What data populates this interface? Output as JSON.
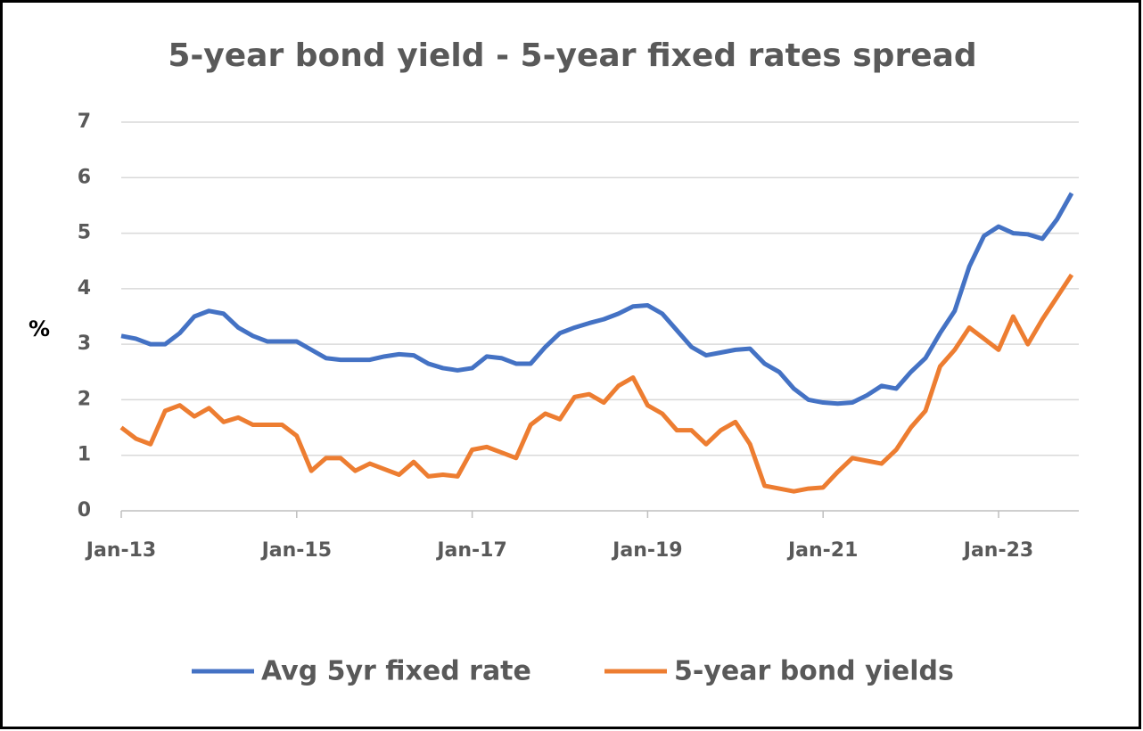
{
  "chart_data": {
    "type": "line",
    "title": "5-year bond yield - 5-year fixed rates spread",
    "y_label": "%",
    "categories": [
      "Jan-13",
      null,
      null,
      null,
      null,
      null,
      null,
      null,
      null,
      null,
      null,
      null,
      "Jan-15",
      null,
      null,
      null,
      null,
      null,
      null,
      null,
      null,
      null,
      null,
      null,
      "Jan-17",
      null,
      null,
      null,
      null,
      null,
      null,
      null,
      null,
      null,
      null,
      null,
      "Jan-19",
      null,
      null,
      null,
      null,
      null,
      null,
      null,
      null,
      null,
      null,
      null,
      "Jan-21",
      null,
      null,
      null,
      null,
      null,
      null,
      null,
      null,
      null,
      null,
      null,
      "Jan-23",
      null,
      null,
      null,
      null,
      null
    ],
    "series": [
      {
        "name": "Avg 5yr fixed rate",
        "color": "#4472c4",
        "values": [
          3.15,
          3.1,
          3.0,
          3.0,
          3.2,
          3.5,
          3.6,
          3.55,
          3.3,
          3.15,
          3.05,
          3.05,
          3.05,
          2.9,
          2.75,
          2.72,
          2.72,
          2.72,
          2.78,
          2.82,
          2.8,
          2.65,
          2.57,
          2.53,
          2.57,
          2.78,
          2.75,
          2.65,
          2.65,
          2.95,
          3.2,
          3.3,
          3.38,
          3.45,
          3.55,
          3.68,
          3.7,
          3.55,
          3.25,
          2.95,
          2.8,
          2.85,
          2.9,
          2.92,
          2.65,
          2.5,
          2.2,
          2.0,
          1.95,
          1.93,
          1.95,
          2.08,
          2.25,
          2.2,
          2.5,
          2.75,
          3.2,
          3.6,
          4.4,
          4.95,
          5.12,
          5.0,
          4.98,
          4.9,
          5.25,
          5.72
        ]
      },
      {
        "name": "5-year bond yields",
        "color": "#ed7d31",
        "values": [
          1.5,
          1.3,
          1.2,
          1.8,
          1.9,
          1.7,
          1.85,
          1.6,
          1.68,
          1.55,
          1.55,
          1.55,
          1.35,
          0.72,
          0.95,
          0.95,
          0.72,
          0.85,
          0.75,
          0.65,
          0.88,
          0.62,
          0.65,
          0.62,
          1.1,
          1.15,
          1.05,
          0.95,
          1.55,
          1.75,
          1.65,
          2.05,
          2.1,
          1.95,
          2.25,
          2.4,
          1.9,
          1.75,
          1.45,
          1.45,
          1.2,
          1.45,
          1.6,
          1.2,
          0.45,
          0.4,
          0.35,
          0.4,
          0.42,
          0.7,
          0.95,
          0.9,
          0.85,
          1.1,
          1.5,
          1.8,
          2.6,
          2.9,
          3.3,
          3.1,
          2.9,
          3.5,
          3.0,
          3.45,
          3.85,
          4.25
        ]
      }
    ],
    "ylim": [
      0,
      7
    ],
    "yticks": [
      0,
      1,
      2,
      3,
      4,
      5,
      6,
      7
    ],
    "grid": true,
    "legend": "bottom"
  }
}
